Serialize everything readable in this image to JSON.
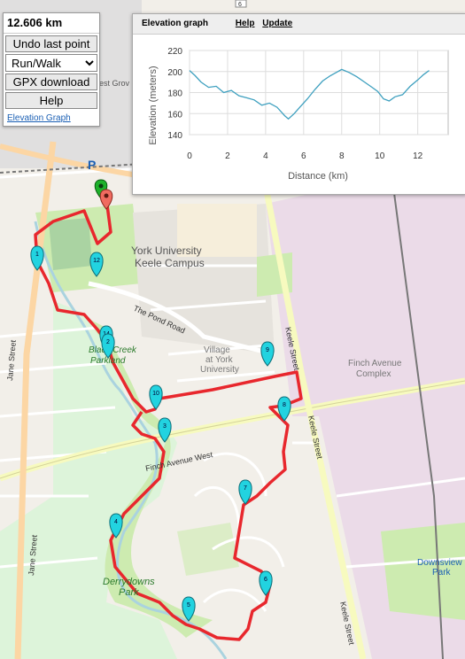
{
  "controls": {
    "distance": "12.606 km",
    "undo_label": "Undo last point",
    "mode_selected": "Run/Walk",
    "gpx_label": "GPX download",
    "help_label": "Help",
    "elevation_link": "Elevation Graph"
  },
  "elevation_panel": {
    "title": "Elevation graph",
    "help_link": "Help",
    "update_link": "Update"
  },
  "chart_data": {
    "type": "line",
    "xlabel": "Distance (km)",
    "ylabel": "Elevation (meters)",
    "xlim": [
      0,
      13.6
    ],
    "ylim": [
      140,
      220
    ],
    "xticks": [
      0,
      2,
      4,
      6,
      8,
      10,
      12
    ],
    "yticks": [
      140,
      160,
      180,
      200,
      220
    ],
    "grid": true,
    "color": "#3ea0bf",
    "x": [
      0,
      0.3,
      0.6,
      1.0,
      1.4,
      1.8,
      2.2,
      2.6,
      3.0,
      3.4,
      3.8,
      4.2,
      4.6,
      5.0,
      5.2,
      5.5,
      5.8,
      6.2,
      6.6,
      7.0,
      7.4,
      7.8,
      8.0,
      8.4,
      8.8,
      9.2,
      9.6,
      9.9,
      10.2,
      10.5,
      10.8,
      11.2,
      11.6,
      12.0,
      12.3,
      12.6
    ],
    "y": [
      201,
      196,
      190,
      185,
      186,
      180,
      182,
      177,
      175,
      173,
      168,
      170,
      166,
      158,
      155,
      160,
      166,
      174,
      183,
      191,
      196,
      200,
      202,
      199,
      195,
      190,
      185,
      181,
      174,
      172,
      176,
      178,
      186,
      192,
      197,
      201
    ]
  },
  "map": {
    "labels": {
      "campus": "York University",
      "campus2": "Keele Campus",
      "pond_road": "The Pond Road",
      "village1": "Village",
      "village2": "at York",
      "village3": "University",
      "finch_complex1": "Finch Avenue",
      "finch_complex2": "Complex",
      "finch_west": "Finch Avenue West",
      "keele1": "Keele Street",
      "keele2": "Keele Street",
      "keele3": "Keele Street",
      "jane1": "Jane Street",
      "jane2": "Jane Street",
      "black_creek1": "Black Creek",
      "black_creek2": "Parkland",
      "derrydowns1": "Derrydowns",
      "derrydowns2": "Park",
      "downsview1": "Downsview",
      "downsview2": "Park",
      "west_grove": "est Grov",
      "parking": "P",
      "route_shield": "6"
    },
    "markers": [
      "1",
      "12",
      "14",
      "2",
      "10",
      "3",
      "9",
      "8",
      "7",
      "4",
      "6",
      "5"
    ]
  }
}
